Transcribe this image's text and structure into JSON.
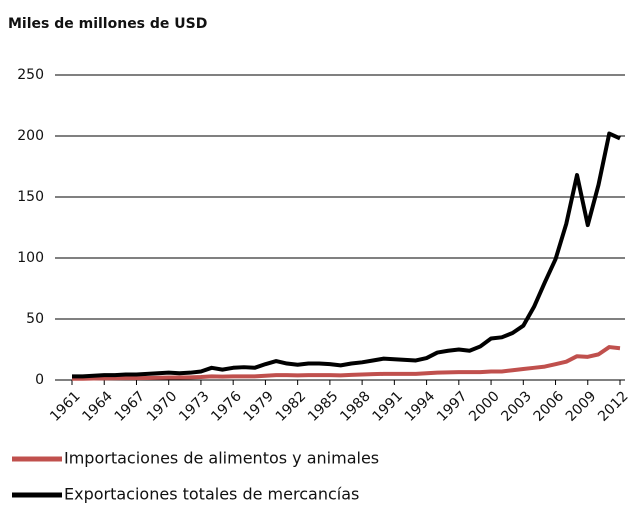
{
  "chart_data": {
    "type": "line",
    "title": "Miles de millones de USD",
    "x": [
      1961,
      1962,
      1963,
      1964,
      1965,
      1966,
      1967,
      1968,
      1969,
      1970,
      1971,
      1972,
      1973,
      1974,
      1975,
      1976,
      1977,
      1978,
      1979,
      1980,
      1981,
      1982,
      1983,
      1984,
      1985,
      1986,
      1987,
      1988,
      1989,
      1990,
      1991,
      1992,
      1993,
      1994,
      1995,
      1996,
      1997,
      1998,
      1999,
      2000,
      2001,
      2002,
      2003,
      2004,
      2005,
      2006,
      2007,
      2008,
      2009,
      2010,
      2011,
      2012
    ],
    "series": [
      {
        "name": "Importaciones de alimentos y animales",
        "color": "#c0504d",
        "values": [
          1,
          1,
          1.2,
          1.3,
          1.4,
          1.5,
          1.5,
          1.6,
          1.8,
          2,
          2,
          2.2,
          2.5,
          3,
          2.8,
          3,
          3,
          3,
          3.5,
          4,
          4,
          3.8,
          4,
          4,
          4,
          3.8,
          4.2,
          4.5,
          4.8,
          5,
          5,
          5,
          5,
          5.5,
          6,
          6.2,
          6.5,
          6.5,
          6.5,
          7,
          7,
          8,
          9,
          10,
          11,
          13,
          15,
          19.5,
          19,
          21,
          27,
          26
        ]
      },
      {
        "name": "Exportaciones totales de mercancías",
        "color": "#000000",
        "values": [
          3,
          3,
          3.5,
          4,
          4,
          4.5,
          4.5,
          5,
          5.5,
          6,
          5.5,
          6,
          7,
          10,
          8.5,
          10,
          10.5,
          10,
          13,
          15.5,
          13.5,
          12.5,
          13.5,
          13.5,
          13,
          12,
          13.5,
          14.5,
          16,
          17.5,
          17,
          16.5,
          16,
          18,
          22.5,
          24,
          25,
          24,
          27.5,
          34,
          35,
          38.5,
          44.5,
          60,
          80,
          99,
          128,
          168,
          127,
          160,
          202,
          198
        ]
      }
    ],
    "xlim": [
      1961,
      2012
    ],
    "xticks": [
      1961,
      1964,
      1967,
      1970,
      1973,
      1976,
      1979,
      1982,
      1985,
      1988,
      1991,
      1994,
      1997,
      2000,
      2003,
      2006,
      2009,
      2012
    ],
    "ylim": [
      0,
      250
    ],
    "yticks": [
      0,
      50,
      100,
      150,
      200,
      250
    ],
    "grid": true
  }
}
